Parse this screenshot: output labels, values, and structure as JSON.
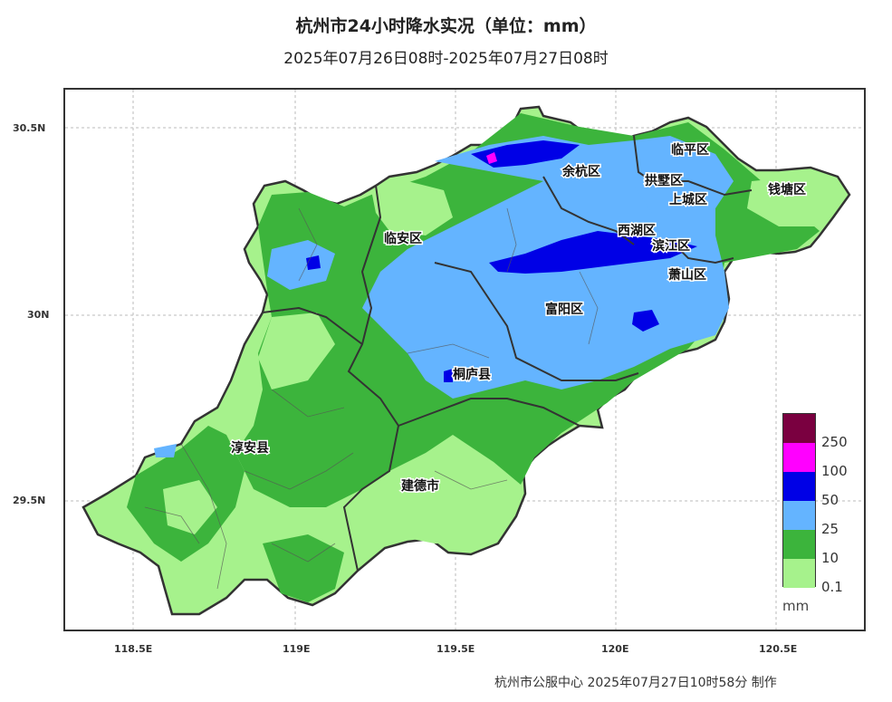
{
  "title": "杭州市24小时降水实况（单位：mm）",
  "subtitle": "2025年07月26日08时-2025年07月27日08时",
  "y_axis_ticks": [
    "30.5N",
    "30N",
    "29.5N"
  ],
  "x_axis_ticks": [
    "118.5E",
    "119E",
    "119.5E",
    "120E",
    "120.5E"
  ],
  "districts": [
    "临平区",
    "余杭区",
    "拱墅区",
    "上城区",
    "钱塘区",
    "西湖区",
    "滨江区",
    "临安区",
    "萧山区",
    "富阳区",
    "桐庐县",
    "淳安县",
    "建德市"
  ],
  "legend": {
    "thresholds": [
      "250",
      "100",
      "50",
      "25",
      "10",
      "0.1"
    ],
    "colors": [
      "#7a0040",
      "#ff00ff",
      "#0000e6",
      "#64b4ff",
      "#3cb43c",
      "#a6f28c"
    ],
    "unit": "mm"
  },
  "credit": "杭州市公服中心 2025年07月27日10时58分 制作"
}
